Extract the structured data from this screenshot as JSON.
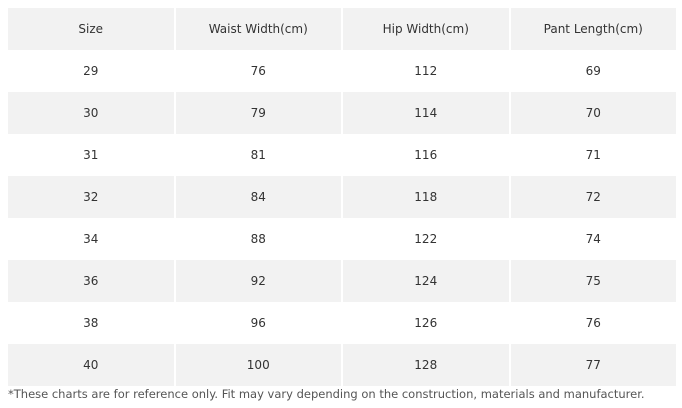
{
  "table": {
    "header": [
      "Size",
      "Waist Width(cm)",
      "Hip Width(cm)",
      "Pant Length(cm)"
    ],
    "rows": [
      [
        29,
        76,
        112,
        69
      ],
      [
        30,
        79,
        114,
        70
      ],
      [
        31,
        81,
        116,
        71
      ],
      [
        32,
        84,
        118,
        72
      ],
      [
        34,
        88,
        122,
        74
      ],
      [
        36,
        92,
        124,
        75
      ],
      [
        38,
        96,
        126,
        76
      ],
      [
        40,
        100,
        128,
        77
      ]
    ]
  },
  "footnote": "*These charts are for reference only. Fit may vary depending on the construction, materials and manufacturer."
}
